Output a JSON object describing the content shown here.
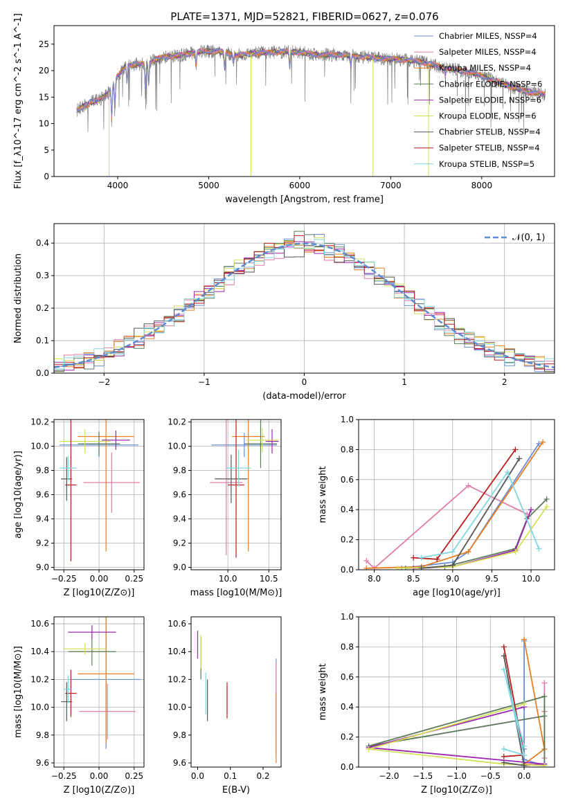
{
  "chart_data": [
    {
      "type": "line",
      "title": "PLATE=1371, MJD=52821, FIBERID=0627, z=0.076",
      "xlabel": "wavelength [Angstrom, rest frame]",
      "ylabel": "Flux [f_λ10^-17 erg cm^-2 s^-1 A^-1]",
      "xlim": [
        3300,
        8800
      ],
      "ylim": [
        0,
        28.5
      ],
      "xticks": [
        "4000",
        "5000",
        "6000",
        "7000",
        "8000"
      ],
      "yticks": [
        "0",
        "5",
        "10",
        "15",
        "20",
        "25"
      ],
      "legend_position": "top-right",
      "observed_spectrum_color": "#808080",
      "continuum_knots": {
        "x": [
          3550,
          3700,
          3800,
          3900,
          4000,
          4100,
          4300,
          4500,
          4700,
          4900,
          5100,
          5300,
          5600,
          5900,
          6200,
          6500,
          6800,
          7000,
          7300,
          7600,
          7900,
          8200,
          8500,
          8800
        ],
        "y": [
          12.5,
          14.0,
          14.5,
          15.8,
          19.0,
          21.0,
          21.3,
          22.6,
          22.9,
          23.6,
          23.7,
          22.9,
          23.4,
          23.6,
          23.0,
          23.0,
          22.4,
          22.2,
          21.8,
          20.5,
          19.6,
          17.7,
          16.0,
          15.2
        ]
      },
      "absorption_lines": [
        {
          "x": 3934,
          "depth": 6.0
        },
        {
          "x": 3969,
          "depth": 5.0
        },
        {
          "x": 4102,
          "depth": 3.0
        },
        {
          "x": 4304,
          "depth": 5.0
        },
        {
          "x": 4340,
          "depth": 4.0
        },
        {
          "x": 4861,
          "depth": 2.5
        },
        {
          "x": 5175,
          "depth": 3.0
        },
        {
          "x": 5270,
          "depth": 1.5
        },
        {
          "x": 5890,
          "depth": 3.0
        },
        {
          "x": 6563,
          "depth": 2.0
        },
        {
          "x": 7600,
          "depth": 1.5
        }
      ],
      "series": [
        {
          "name": "Chabrier MILES, N_SSP=4",
          "color": "#6b8fd6"
        },
        {
          "name": "Salpeter MILES, N_SSP=4",
          "color": "#e37ba8"
        },
        {
          "name": "Kroupa MILES, N_SSP=4",
          "color": "#e67e22"
        },
        {
          "name": "Chabrier ELODIE, N_SSP=6",
          "color": "#5a7a5a"
        },
        {
          "name": "Salpeter ELODIE, N_SSP=6",
          "color": "#9b27b0"
        },
        {
          "name": "Kroupa ELODIE, N_SSP=6",
          "color": "#d4e157"
        },
        {
          "name": "Chabrier STELIB, N_SSP=4",
          "color": "#555555"
        },
        {
          "name": "Salpeter STELIB, N_SSP=4",
          "color": "#b71c1c"
        },
        {
          "name": "Kroupa STELIB, N_SSP=5",
          "color": "#7fd6e0"
        }
      ]
    },
    {
      "type": "line",
      "xlabel": "(data-model)/error",
      "ylabel": "Normed distribution",
      "xlim": [
        -2.5,
        2.5
      ],
      "ylim": [
        0,
        0.46
      ],
      "xticks": [
        "−2",
        "−1",
        "0",
        "1",
        "2"
      ],
      "yticks": [
        "0.0",
        "0.1",
        "0.2",
        "0.3",
        "0.4"
      ],
      "grid": true,
      "legend_position": "top-right",
      "reference_curve": {
        "name": "𝒩(0, 1)",
        "mean": 0,
        "sigma": 1,
        "color": "#5b8bd4",
        "style": "dashed"
      },
      "histogram_bin_width": 0.1,
      "histogram_sigma_scale": [
        0.98,
        1.05,
        1.02,
        0.96,
        1.03,
        1.0,
        1.07,
        0.99,
        1.01
      ],
      "histogram_colors": [
        "#6b8fd6",
        "#e37ba8",
        "#e67e22",
        "#5a7a5a",
        "#9b27b0",
        "#d4e157",
        "#555555",
        "#b71c1c",
        "#7fd6e0"
      ]
    },
    {
      "type": "scatter",
      "xlabel": "Z [log10(Z/Z⊙)]",
      "ylabel": "age [log10(age/yr)]",
      "xlim": [
        -0.32,
        0.32
      ],
      "ylim": [
        8.98,
        10.22
      ],
      "xticks": [
        "−0.25",
        "0.00",
        "0.25"
      ],
      "yticks": [
        "9.0",
        "9.2",
        "9.4",
        "9.6",
        "9.8",
        "10.0",
        "10.2"
      ],
      "grid": true,
      "points": [
        {
          "x": 0.0,
          "y": 10.01,
          "x_err": 0.28,
          "y_err": 0.1,
          "color": "#6b8fd6"
        },
        {
          "x": 0.09,
          "y": 9.7,
          "x_err": 0.2,
          "y_err": 0.25,
          "color": "#e37ba8"
        },
        {
          "x": 0.05,
          "y": 10.08,
          "x_err": 0.2,
          "y_err": 0.95,
          "color": "#e67e22"
        },
        {
          "x": 0.0,
          "y": 10.02,
          "x_err": 0.15,
          "y_err": 0.1,
          "color": "#5a7a5a"
        },
        {
          "x": 0.12,
          "y": 10.05,
          "x_err": 0.1,
          "y_err": 0.08,
          "color": "#9b27b0"
        },
        {
          "x": -0.1,
          "y": 10.04,
          "x_err": 0.18,
          "y_err": 0.1,
          "color": "#d4e157"
        },
        {
          "x": -0.23,
          "y": 9.73,
          "x_err": 0.04,
          "y_err": 0.18,
          "color": "#555555"
        },
        {
          "x": -0.2,
          "y": 9.68,
          "x_err": 0.04,
          "y_err": 0.63,
          "color": "#b71c1c"
        },
        {
          "x": -0.22,
          "y": 9.82,
          "x_err": 0.06,
          "y_err": 0.1,
          "color": "#7fd6e0"
        }
      ]
    },
    {
      "type": "scatter",
      "xlabel": "mass [log10(M/M⊙)]",
      "xlim": [
        9.55,
        10.65
      ],
      "ylim": [
        8.98,
        10.22
      ],
      "xticks": [
        "10.0",
        "10.5"
      ],
      "yticks": [
        "9.0",
        "9.2",
        "9.4",
        "9.6",
        "9.8",
        "10.0",
        "10.2"
      ],
      "grid": true,
      "points": [
        {
          "x": 10.2,
          "y": 10.01,
          "x_err": 0.4,
          "y_err": 0.1,
          "color": "#6b8fd6"
        },
        {
          "x": 9.98,
          "y": 9.7,
          "x_err": 0.2,
          "y_err": 0.6,
          "color": "#e37ba8"
        },
        {
          "x": 10.25,
          "y": 10.08,
          "x_err": 0.2,
          "y_err": 0.95,
          "color": "#e67e22"
        },
        {
          "x": 10.4,
          "y": 10.02,
          "x_err": 0.2,
          "y_err": 0.2,
          "color": "#5a7a5a"
        },
        {
          "x": 10.54,
          "y": 10.04,
          "x_err": 0.08,
          "y_err": 0.1,
          "color": "#9b27b0"
        },
        {
          "x": 10.42,
          "y": 10.05,
          "x_err": 0.2,
          "y_err": 0.1,
          "color": "#d4e157"
        },
        {
          "x": 10.04,
          "y": 9.73,
          "x_err": 0.2,
          "y_err": 0.2,
          "color": "#555555"
        },
        {
          "x": 10.1,
          "y": 9.68,
          "x_err": 0.1,
          "y_err": 0.6,
          "color": "#b71c1c"
        },
        {
          "x": 10.13,
          "y": 9.82,
          "x_err": 0.15,
          "y_err": 0.15,
          "color": "#7fd6e0"
        }
      ]
    },
    {
      "type": "line",
      "xlabel": "age [log10(age/yr)]",
      "ylabel": "mass weight",
      "xlim": [
        7.8,
        10.3
      ],
      "ylim": [
        0,
        1
      ],
      "xticks": [
        "8.0",
        "8.5",
        "9.0",
        "9.5",
        "10.0"
      ],
      "yticks": [
        "0.0",
        "0.2",
        "0.4",
        "0.6",
        "0.8",
        "1.0"
      ],
      "grid": true,
      "series": [
        {
          "color": "#6b8fd6",
          "x": [
            8.35,
            9.0,
            9.2,
            10.1
          ],
          "y": [
            0.01,
            0.05,
            0.12,
            0.84
          ]
        },
        {
          "color": "#e37ba8",
          "x": [
            7.9,
            8.0,
            9.2,
            9.95
          ],
          "y": [
            0.06,
            0.01,
            0.56,
            0.37
          ]
        },
        {
          "color": "#e67e22",
          "x": [
            7.9,
            8.6,
            9.2,
            10.15
          ],
          "y": [
            0.01,
            0.02,
            0.12,
            0.85
          ]
        },
        {
          "color": "#5a7a5a",
          "x": [
            8.4,
            8.9,
            9.8,
            9.95,
            10.2
          ],
          "y": [
            0.01,
            0.02,
            0.14,
            0.34,
            0.47
          ]
        },
        {
          "color": "#9b27b0",
          "x": [
            8.5,
            9.0,
            9.8,
            10.0
          ],
          "y": [
            0.01,
            0.02,
            0.13,
            0.4
          ]
        },
        {
          "color": "#d4e157",
          "x": [
            8.3,
            9.0,
            9.8,
            10.2
          ],
          "y": [
            0.01,
            0.02,
            0.12,
            0.42
          ]
        },
        {
          "color": "#555555",
          "x": [
            8.6,
            9.0,
            9.85
          ],
          "y": [
            0.01,
            0.03,
            0.74
          ]
        },
        {
          "color": "#b71c1c",
          "x": [
            8.5,
            8.8,
            9.8
          ],
          "y": [
            0.08,
            0.07,
            0.8
          ]
        },
        {
          "color": "#7fd6e0",
          "x": [
            8.6,
            9.0,
            9.7,
            10.1
          ],
          "y": [
            0.08,
            0.12,
            0.65,
            0.14
          ]
        }
      ]
    },
    {
      "type": "scatter",
      "xlabel": "Z [log10(Z/Z⊙)]",
      "ylabel": "mass [log10(M/M⊙)]",
      "xlim": [
        -0.32,
        0.32
      ],
      "ylim": [
        9.57,
        10.65
      ],
      "xticks": [
        "−0.25",
        "0.00",
        "0.25"
      ],
      "yticks": [
        "9.6",
        "9.8",
        "10.0",
        "10.2",
        "10.4",
        "10.6"
      ],
      "grid": true,
      "points": [
        {
          "x": 0.05,
          "y": 10.2,
          "x_err": 0.25,
          "y_err": 0.5,
          "color": "#6b8fd6"
        },
        {
          "x": 0.06,
          "y": 9.97,
          "x_err": 0.2,
          "y_err": 0.2,
          "color": "#e37ba8"
        },
        {
          "x": 0.05,
          "y": 10.24,
          "x_err": 0.2,
          "y_err": 0.5,
          "color": "#e67e22"
        },
        {
          "x": -0.05,
          "y": 10.4,
          "x_err": 0.17,
          "y_err": 0.1,
          "color": "#5a7a5a"
        },
        {
          "x": -0.05,
          "y": 10.54,
          "x_err": 0.17,
          "y_err": 0.05,
          "color": "#9b27b0"
        },
        {
          "x": -0.1,
          "y": 10.42,
          "x_err": 0.15,
          "y_err": 0.04,
          "color": "#d4e157"
        },
        {
          "x": -0.23,
          "y": 10.04,
          "x_err": 0.04,
          "y_err": 0.14,
          "color": "#555555"
        },
        {
          "x": -0.2,
          "y": 10.1,
          "x_err": 0.04,
          "y_err": 0.17,
          "color": "#b71c1c"
        },
        {
          "x": -0.22,
          "y": 10.13,
          "x_err": 0.03,
          "y_err": 0.1,
          "color": "#7fd6e0"
        }
      ]
    },
    {
      "type": "scatter",
      "xlabel": "E(B-V)",
      "xlim": [
        -0.02,
        0.255
      ],
      "ylim": [
        9.57,
        10.65
      ],
      "xticks": [
        "0.0",
        "0.1",
        "0.2"
      ],
      "yticks": [
        "9.6",
        "9.8",
        "10.0",
        "10.2",
        "10.4",
        "10.6"
      ],
      "points": [
        {
          "x": 0.24,
          "y": 10.0,
          "y_err": 0.35,
          "color": "#6b8fd6"
        },
        {
          "x": 0.24,
          "y": 10.05,
          "y_err": 0.27,
          "color": "#e37ba8"
        },
        {
          "x": 0.24,
          "y": 9.85,
          "y_err": 0.25,
          "color": "#e67e22"
        },
        {
          "x": 0.01,
          "y": 10.35,
          "y_err": 0.15,
          "color": "#5a7a5a"
        },
        {
          "x": 0.0,
          "y": 10.45,
          "y_err": 0.1,
          "color": "#9b27b0"
        },
        {
          "x": 0.01,
          "y": 10.4,
          "y_err": 0.12,
          "color": "#d4e157"
        },
        {
          "x": 0.03,
          "y": 10.05,
          "y_err": 0.15,
          "color": "#555555"
        },
        {
          "x": 0.09,
          "y": 10.05,
          "y_err": 0.13,
          "color": "#b71c1c"
        },
        {
          "x": 0.025,
          "y": 10.1,
          "y_err": 0.15,
          "color": "#7fd6e0"
        }
      ]
    },
    {
      "type": "line",
      "xlabel": "Z [log10(Z/Z⊙)]",
      "ylabel": "mass weight",
      "xlim": [
        -2.45,
        0.45
      ],
      "ylim": [
        0,
        1
      ],
      "xticks": [
        "−2.0",
        "−1.5",
        "−1.0",
        "−0.5",
        "0.0"
      ],
      "yticks": [
        "0.0",
        "0.2",
        "0.4",
        "0.6",
        "0.8",
        "1.0"
      ],
      "grid": true,
      "series": [
        {
          "color": "#6b8fd6",
          "x": [
            0.3,
            0.0,
            0.0,
            0.0
          ],
          "y": [
            0.01,
            0.05,
            0.12,
            0.84
          ]
        },
        {
          "color": "#e37ba8",
          "x": [
            0.3,
            0.3,
            0.3,
            0.3
          ],
          "y": [
            0.06,
            0.01,
            0.56,
            0.37
          ]
        },
        {
          "color": "#e67e22",
          "x": [
            0.3,
            0.0,
            0.3,
            0.0
          ],
          "y": [
            0.01,
            0.02,
            0.12,
            0.85
          ]
        },
        {
          "color": "#5a7a5a",
          "x": [
            0.0,
            0.3,
            0.3,
            -2.3,
            0.3
          ],
          "y": [
            0.01,
            0.02,
            0.47,
            0.14,
            0.34
          ]
        },
        {
          "color": "#9b27b0",
          "x": [
            0.0,
            0.3,
            -2.3,
            0.0
          ],
          "y": [
            0.01,
            0.02,
            0.13,
            0.4
          ]
        },
        {
          "color": "#d4e157",
          "x": [
            0.3,
            -0.3,
            -2.3,
            0.0
          ],
          "y": [
            0.01,
            0.02,
            0.12,
            0.42
          ]
        },
        {
          "color": "#555555",
          "x": [
            -0.3,
            0.0,
            -0.3
          ],
          "y": [
            0.03,
            0.01,
            0.74
          ]
        },
        {
          "color": "#b71c1c",
          "x": [
            -0.3,
            0.0,
            -0.3
          ],
          "y": [
            0.07,
            0.08,
            0.8
          ]
        },
        {
          "color": "#7fd6e0",
          "x": [
            -0.3,
            0.0,
            -0.3,
            0.0
          ],
          "y": [
            0.12,
            0.08,
            0.65,
            0.14
          ]
        }
      ]
    }
  ]
}
